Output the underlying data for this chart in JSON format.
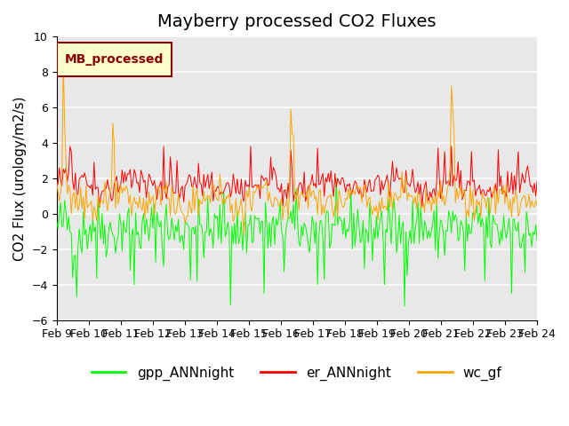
{
  "title": "Mayberry processed CO2 Fluxes",
  "ylabel": "CO2 Flux (urology/m2/s)",
  "ylim": [
    -6,
    10
  ],
  "yticks": [
    -6,
    -4,
    -2,
    0,
    2,
    4,
    6,
    8,
    10
  ],
  "xlim_max": 15,
  "x_tick_labels": [
    "Feb 9",
    "Feb 10",
    "Feb 11",
    "Feb 12",
    "Feb 13",
    "Feb 14",
    "Feb 15",
    "Feb 16",
    "Feb 17",
    "Feb 18",
    "Feb 19",
    "Feb 20",
    "Feb 21",
    "Feb 22",
    "Feb 23",
    "Feb 24"
  ],
  "legend_label": "MB_processed",
  "legend_label_color": "#8B0000",
  "legend_box_facecolor": "#FFFFCC",
  "legend_box_edgecolor": "#8B0000",
  "series_labels": [
    "gpp_ANNnight",
    "er_ANNnight",
    "wc_gf"
  ],
  "series_colors": [
    "#00FF00",
    "#FF0000",
    "#FFA500"
  ],
  "background_color": "#E8E8E8",
  "grid_color": "#FFFFFF",
  "title_fontsize": 14,
  "axis_label_fontsize": 11,
  "tick_fontsize": 9,
  "legend_fontsize": 11,
  "seed": 42,
  "n_points": 360
}
